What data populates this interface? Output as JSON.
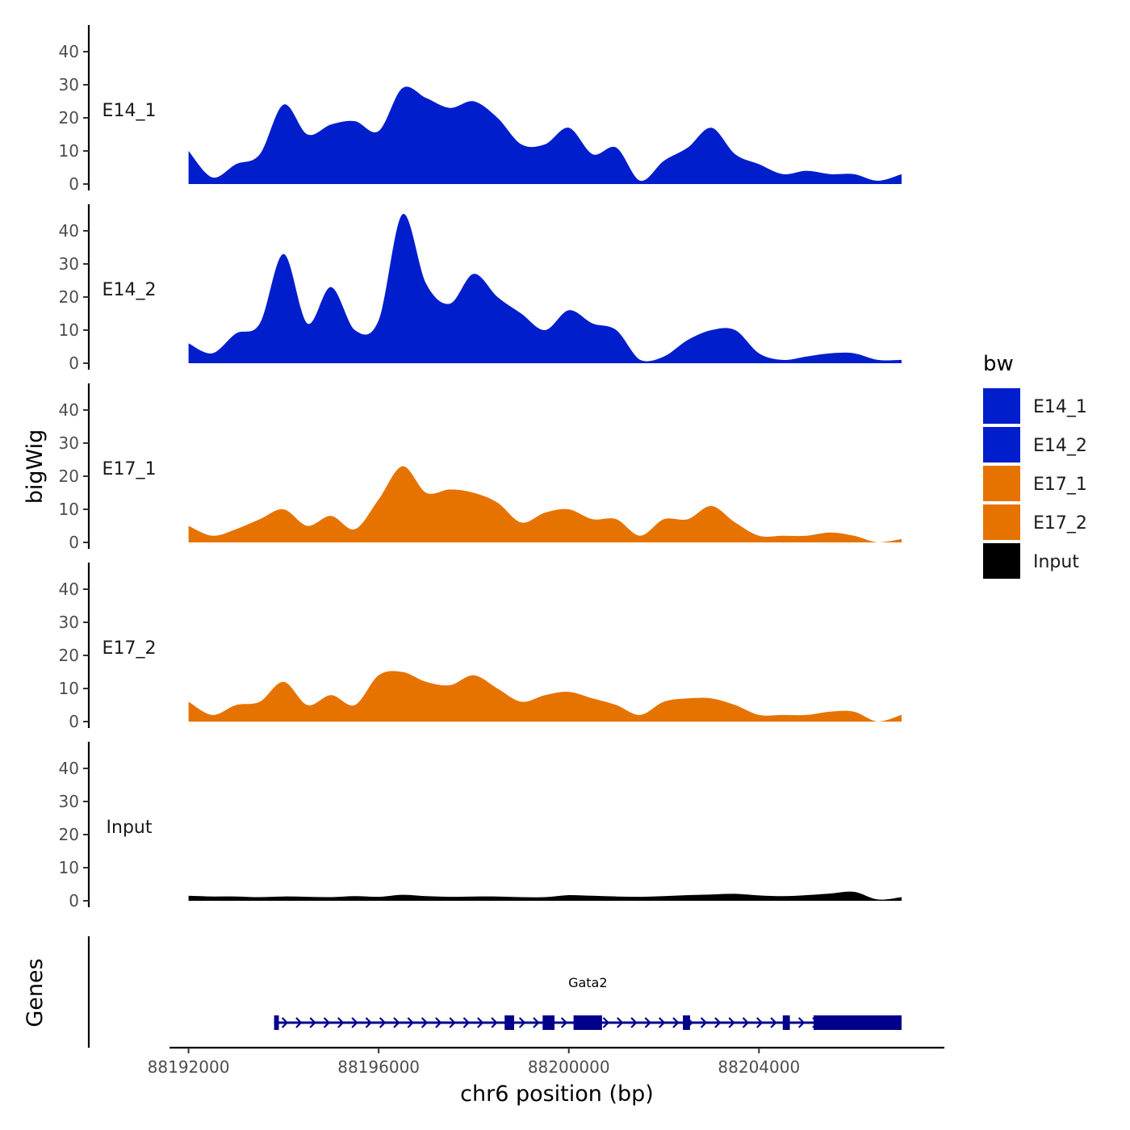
{
  "chart_data": {
    "type": "area",
    "ylabel": "bigWig",
    "xlabel": "chr6 position (bp)",
    "xlim": [
      88191600,
      88207900
    ],
    "ylim": [
      0,
      46
    ],
    "yticks": [
      0,
      10,
      20,
      30,
      40
    ],
    "xticks": [
      88192000,
      88196000,
      88200000,
      88204000
    ],
    "xtick_labels": [
      "88192000",
      "88196000",
      "88200000",
      "88204000"
    ],
    "legend": {
      "title": "bw",
      "position": "right"
    },
    "x": [
      88192000,
      88192500,
      88193000,
      88193500,
      88194000,
      88194500,
      88195000,
      88195500,
      88196000,
      88196500,
      88197000,
      88197500,
      88198000,
      88198500,
      88199000,
      88199500,
      88200000,
      88200500,
      88201000,
      88201500,
      88202000,
      88202500,
      88203000,
      88203500,
      88204000,
      88204500,
      88205000,
      88205500,
      88206000,
      88206500,
      88207000
    ],
    "series": [
      {
        "name": "E14_1",
        "color": "#001ECC",
        "values": [
          10,
          2,
          6,
          9,
          24,
          15,
          18,
          19,
          16,
          29,
          26,
          23,
          25,
          20,
          12,
          12,
          17,
          9,
          11,
          1,
          7,
          11,
          17,
          9,
          6,
          3,
          4,
          3,
          3,
          1,
          3
        ]
      },
      {
        "name": "E14_2",
        "color": "#001ECC",
        "values": [
          6,
          3,
          9,
          12,
          33,
          12,
          23,
          10,
          13,
          45,
          24,
          18,
          27,
          20,
          15,
          10,
          16,
          12,
          10,
          1,
          2,
          7,
          10,
          10,
          3,
          1,
          2,
          3,
          3,
          1,
          1
        ]
      },
      {
        "name": "E17_1",
        "color": "#E67300",
        "values": [
          5,
          2,
          4,
          7,
          10,
          5,
          8,
          4,
          13,
          23,
          15,
          16,
          15,
          12,
          6,
          9,
          10,
          7,
          7,
          2,
          7,
          7,
          11,
          6,
          2,
          2,
          2,
          3,
          2,
          0,
          1
        ]
      },
      {
        "name": "E17_2",
        "color": "#E67300",
        "values": [
          6,
          2,
          5,
          6,
          12,
          5,
          8,
          5,
          14,
          15,
          12,
          11,
          14,
          10,
          6,
          8,
          9,
          7,
          5,
          2,
          6,
          7,
          7,
          5,
          2,
          2,
          2,
          3,
          3,
          0,
          2
        ]
      },
      {
        "name": "Input",
        "color": "#000000",
        "values": [
          1.5,
          1.3,
          1.3,
          1.1,
          1.3,
          1.2,
          1.1,
          1.4,
          1.2,
          1.8,
          1.4,
          1.2,
          1.3,
          1.3,
          1.1,
          1.1,
          1.7,
          1.5,
          1.3,
          1.2,
          1.4,
          1.7,
          1.9,
          2.1,
          1.6,
          1.4,
          1.7,
          2.2,
          2.7,
          0.4,
          1.1
        ]
      }
    ],
    "genes_track": {
      "ylabel": "Genes",
      "gene": {
        "name": "Gata2",
        "strand": "+",
        "start": 88193800,
        "end": 88207000,
        "color": "#00008B",
        "exons": [
          [
            88193800,
            88193900
          ],
          [
            88198650,
            88198850
          ],
          [
            88199450,
            88199700
          ],
          [
            88200100,
            88200700
          ],
          [
            88202400,
            88202550
          ],
          [
            88204500,
            88204650
          ],
          [
            88205150,
            88207000
          ]
        ]
      }
    }
  }
}
